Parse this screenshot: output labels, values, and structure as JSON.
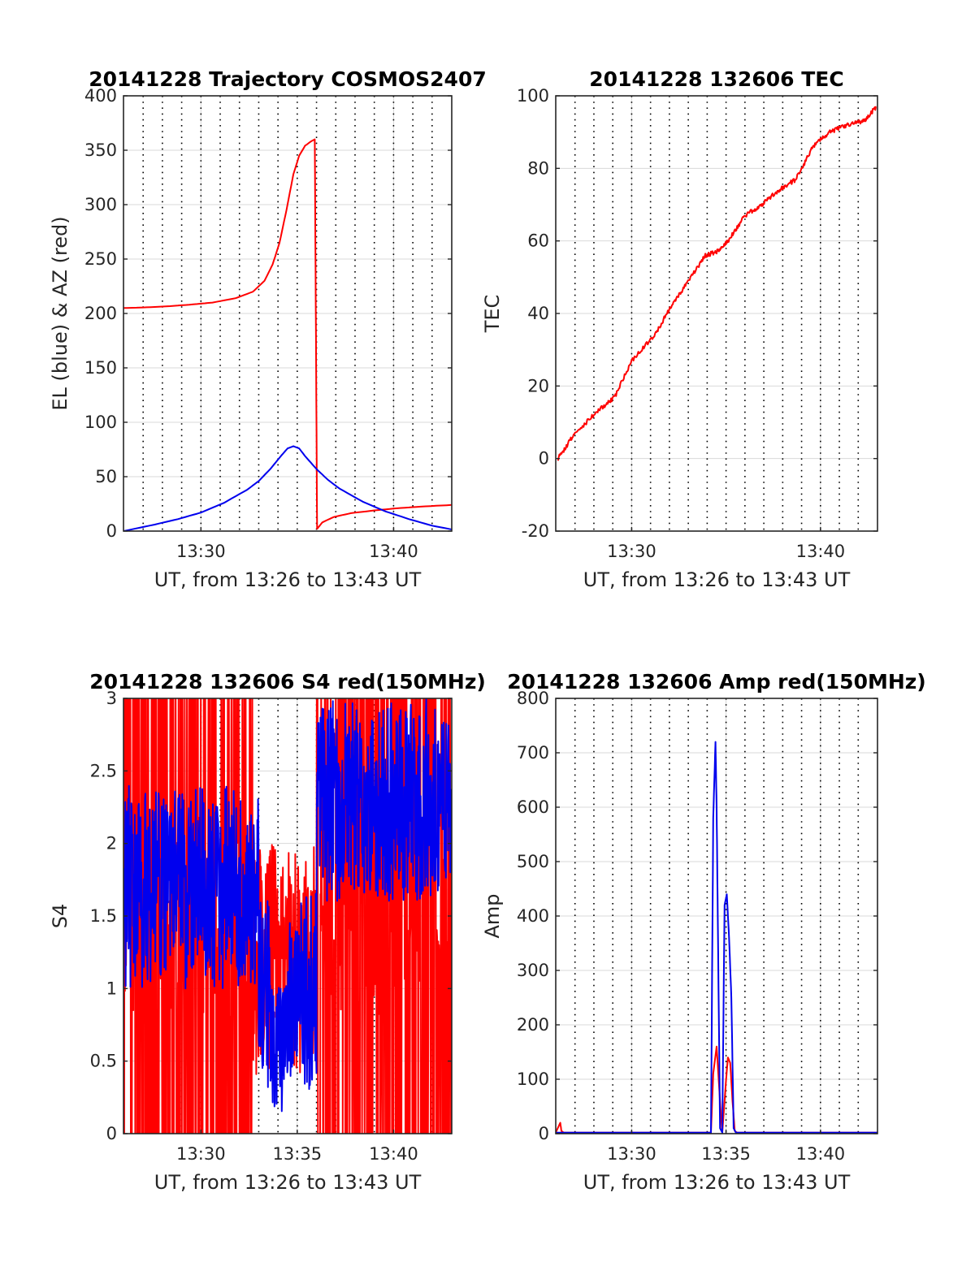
{
  "colors": {
    "red": "#ff0000",
    "blue": "#0000ee",
    "grid": "#d9d9d9",
    "axis": "#262626"
  },
  "chart_data": [
    {
      "type": "line",
      "title": "20141228 Trajectory COSMOS2407",
      "xlabel": "UT, from 13:26 to 13:43 UT",
      "ylabel": "EL (blue) & AZ (red)",
      "xlim": [
        13.433,
        13.717
      ],
      "ylim": [
        0,
        400
      ],
      "yticks": [
        0,
        50,
        100,
        150,
        200,
        250,
        300,
        350,
        400
      ],
      "ytick_labels": [
        "0",
        "50",
        "100",
        "150",
        "200",
        "250",
        "300",
        "350",
        "400"
      ],
      "xticks": [
        13.5,
        13.6667
      ],
      "xtick_labels": [
        "13:30",
        "13:40"
      ],
      "series": [
        {
          "color": "red",
          "x": [
            13.433,
            13.45,
            13.47,
            13.49,
            13.51,
            13.53,
            13.545,
            13.555,
            13.562,
            13.568,
            13.574,
            13.58,
            13.585,
            13.59,
            13.595,
            13.5985,
            13.5995,
            13.6005,
            13.605,
            13.615,
            13.63,
            13.65,
            13.67,
            13.69,
            13.717
          ],
          "y": [
            205,
            205.5,
            206.5,
            208,
            210,
            214,
            220,
            230,
            245,
            265,
            295,
            328,
            345,
            354,
            358,
            360,
            180,
            2,
            8,
            13,
            16.5,
            19,
            21,
            22.5,
            24
          ]
        },
        {
          "color": "blue",
          "x": [
            13.433,
            13.46,
            13.48,
            13.5,
            13.52,
            13.54,
            13.55,
            13.56,
            13.57,
            13.575,
            13.58,
            13.585,
            13.59,
            13.6,
            13.61,
            13.62,
            13.64,
            13.66,
            13.68,
            13.7,
            13.717
          ],
          "y": [
            0,
            6,
            11,
            17,
            26,
            38,
            46,
            57,
            70,
            76,
            78,
            76,
            69,
            57,
            47,
            39,
            27,
            18,
            11,
            5,
            1.5
          ]
        }
      ],
      "grid": "on",
      "xgrid_style": "dotted minute lines"
    },
    {
      "type": "line",
      "title": "20141228 132606 TEC",
      "xlabel": "UT, from 13:26 to 13:43 UT",
      "ylabel": "TEC",
      "xlim": [
        13.433,
        13.717
      ],
      "ylim": [
        -20,
        100
      ],
      "yticks": [
        -20,
        0,
        20,
        40,
        60,
        80,
        100
      ],
      "ytick_labels": [
        "-20",
        "0",
        "20",
        "40",
        "60",
        "80",
        "100"
      ],
      "xticks": [
        13.5,
        13.6667
      ],
      "xtick_labels": [
        "13:30",
        "13:40"
      ],
      "series": [
        {
          "color": "red",
          "x": [
            13.435,
            13.45,
            13.47,
            13.485,
            13.5,
            13.52,
            13.535,
            13.55,
            13.565,
            13.575,
            13.585,
            13.6,
            13.615,
            13.63,
            13.645,
            13.66,
            13.675,
            13.69,
            13.705,
            13.716
          ],
          "y": [
            0,
            7,
            13,
            17,
            27,
            34,
            42,
            49,
            56,
            57,
            60,
            67,
            70,
            74,
            77,
            86,
            90,
            92,
            93,
            97
          ]
        }
      ],
      "grid": "on"
    },
    {
      "type": "line",
      "title": "20141228 132606 S4 red(150MHz)",
      "xlabel": "UT, from 13:26 to 13:43 UT",
      "ylabel": "S4",
      "xlim": [
        13.433,
        13.717
      ],
      "ylim": [
        0,
        3
      ],
      "yticks": [
        0,
        0.5,
        1,
        1.5,
        2,
        2.5,
        3
      ],
      "ytick_labels": [
        "0",
        "0.5",
        "1",
        "1.5",
        "2",
        "2.5",
        "3"
      ],
      "xticks": [
        13.5,
        13.5833,
        13.6667
      ],
      "xtick_labels": [
        "13:30",
        "13:35",
        "13:40"
      ],
      "series": [
        {
          "color": "red",
          "description_free": true,
          "x_range": [
            13.433,
            13.717
          ],
          "y_range": [
            0,
            3
          ]
        },
        {
          "color": "blue",
          "x_range": [
            13.433,
            13.717
          ],
          "y_range": [
            0.1,
            3
          ]
        }
      ],
      "grid": "on"
    },
    {
      "type": "line",
      "title": "20141228 132606 Amp red(150MHz)",
      "xlabel": "UT, from 13:26 to 13:43 UT",
      "ylabel": "Amp",
      "xlim": [
        13.433,
        13.717
      ],
      "ylim": [
        0,
        800
      ],
      "yticks": [
        0,
        100,
        200,
        300,
        400,
        500,
        600,
        700,
        800
      ],
      "ytick_labels": [
        "0",
        "100",
        "200",
        "300",
        "400",
        "500",
        "600",
        "700",
        "800"
      ],
      "xticks": [
        13.5,
        13.5833,
        13.6667
      ],
      "xtick_labels": [
        "13:30",
        "13:35",
        "13:40"
      ],
      "series": [
        {
          "color": "red",
          "x": [
            13.433,
            13.437,
            13.438,
            13.44,
            13.57,
            13.572,
            13.575,
            13.578,
            13.58,
            13.583,
            13.585,
            13.587,
            13.589,
            13.591,
            13.593,
            13.717
          ],
          "y": [
            2,
            20,
            5,
            2,
            2,
            110,
            160,
            60,
            2,
            90,
            140,
            130,
            60,
            5,
            2,
            2
          ]
        },
        {
          "color": "blue",
          "x": [
            13.433,
            13.57,
            13.572,
            13.574,
            13.575,
            13.576,
            13.578,
            13.58,
            13.582,
            13.584,
            13.586,
            13.588,
            13.59,
            13.592,
            13.717
          ],
          "y": [
            2,
            2,
            580,
            720,
            600,
            400,
            10,
            2,
            420,
            440,
            360,
            250,
            10,
            2,
            2
          ]
        }
      ],
      "grid": "on"
    }
  ]
}
